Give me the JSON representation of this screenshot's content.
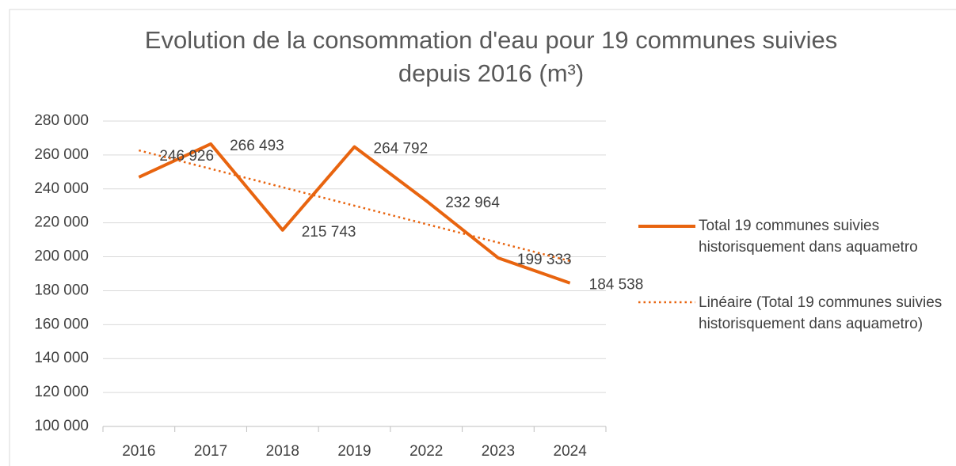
{
  "chart_data": {
    "type": "line",
    "title": "Evolution de la consommation d'eau pour 19 communes suivies depuis 2016 (m³)",
    "categories": [
      "2016",
      "2017",
      "2018",
      "2019",
      "2022",
      "2023",
      "2024"
    ],
    "series": [
      {
        "name": "Total 19 communes suivies historisquement dans aquametro",
        "color": "#e8640f",
        "style": "solid",
        "values": [
          246926,
          266493,
          215743,
          264792,
          232964,
          199333,
          184538
        ],
        "value_labels": [
          "246 926",
          "266 493",
          "215 743",
          "264 792",
          "232 964",
          "199 333",
          "184 538"
        ]
      },
      {
        "name": "Linéaire (Total 19 communes suivies historisquement dans aquametro)",
        "color": "#e8640f",
        "style": "dotted",
        "values": [
          262712,
          251846,
          240979,
          230113,
          219246,
          208380,
          197513
        ]
      }
    ],
    "ylim": [
      100000,
      280000
    ],
    "yticks": [
      {
        "value": 100000,
        "label": "100 000"
      },
      {
        "value": 120000,
        "label": "120 000"
      },
      {
        "value": 140000,
        "label": "140 000"
      },
      {
        "value": 160000,
        "label": "160 000"
      },
      {
        "value": 180000,
        "label": "180 000"
      },
      {
        "value": 200000,
        "label": "200 000"
      },
      {
        "value": 220000,
        "label": "220 000"
      },
      {
        "value": 240000,
        "label": "240 000"
      },
      {
        "value": 260000,
        "label": "260 000"
      },
      {
        "value": 280000,
        "label": "280 000"
      }
    ],
    "grid": true,
    "legend": "right"
  }
}
